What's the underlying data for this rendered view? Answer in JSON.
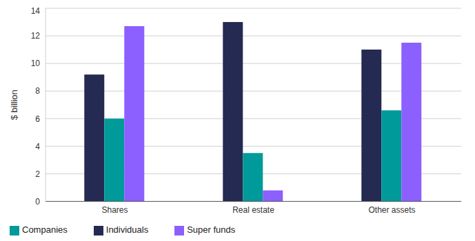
{
  "chart_data": {
    "type": "bar",
    "y_label": "$ billion",
    "categories": [
      "Shares",
      "Real estate",
      "Other assets"
    ],
    "series": [
      {
        "name": "Individuals",
        "color": "#252a52",
        "values": [
          9.2,
          13.0,
          11.0
        ]
      },
      {
        "name": "Companies",
        "color": "#009a9a",
        "values": [
          6.0,
          3.5,
          6.6
        ]
      },
      {
        "name": "Super funds",
        "color": "#8c5fff",
        "values": [
          12.7,
          0.8,
          11.5
        ]
      }
    ],
    "ylim": [
      0,
      14
    ],
    "yticks": [
      0,
      2,
      4,
      6,
      8,
      10,
      12,
      14
    ],
    "grid": true,
    "legend": "bottom-left"
  }
}
